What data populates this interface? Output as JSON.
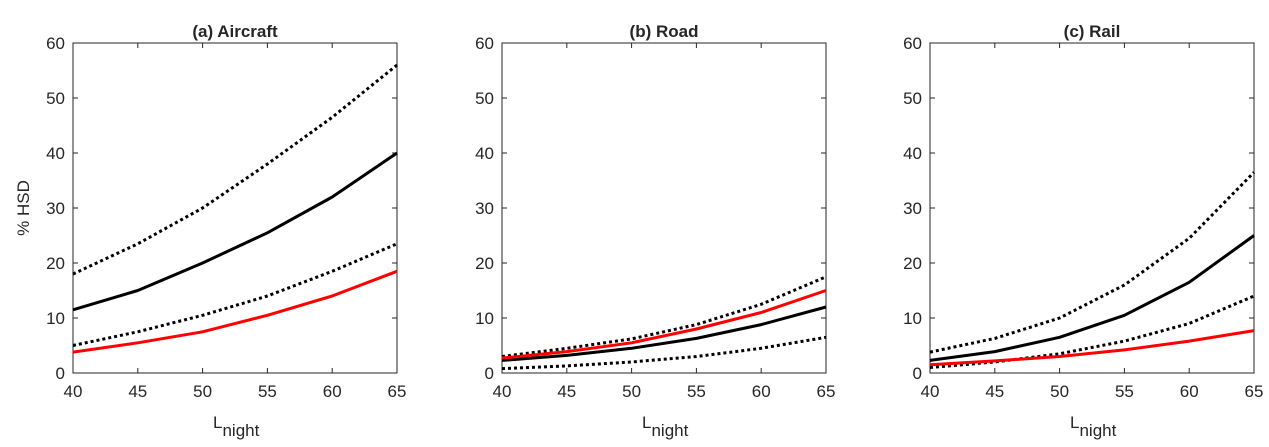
{
  "chart_data": [
    {
      "type": "line",
      "title": "(a) Aircraft",
      "ylabel": "% HSD",
      "xlabel": {
        "base": "L",
        "subscript": "night"
      },
      "x": [
        40,
        45,
        50,
        55,
        60,
        65
      ],
      "xlim": [
        40,
        65
      ],
      "ylim": [
        0,
        60
      ],
      "xticks": [
        40,
        45,
        50,
        55,
        60,
        65
      ],
      "yticks": [
        0,
        10,
        20,
        30,
        40,
        50,
        60
      ],
      "series": [
        {
          "color": "#000000",
          "dash": "solid",
          "values": [
            11.5,
            15,
            20,
            25.5,
            32,
            40
          ]
        },
        {
          "color": "#000000",
          "dash": "dotted",
          "values": [
            18,
            23.5,
            30,
            38,
            46.5,
            56
          ]
        },
        {
          "color": "#000000",
          "dash": "dotted",
          "values": [
            5,
            7.5,
            10.5,
            14,
            18.5,
            23.5
          ]
        },
        {
          "color": "#ff0000",
          "dash": "solid",
          "values": [
            3.8,
            5.5,
            7.5,
            10.5,
            14,
            18.5
          ]
        }
      ]
    },
    {
      "type": "line",
      "title": "(b) Road",
      "xlabel": {
        "base": "L",
        "subscript": "night"
      },
      "x": [
        40,
        45,
        50,
        55,
        60,
        65
      ],
      "xlim": [
        40,
        65
      ],
      "ylim": [
        0,
        60
      ],
      "xticks": [
        40,
        45,
        50,
        55,
        60,
        65
      ],
      "yticks": [
        0,
        10,
        20,
        30,
        40,
        50,
        60
      ],
      "series": [
        {
          "color": "#000000",
          "dash": "solid",
          "values": [
            2.3,
            3.2,
            4.5,
            6.3,
            8.8,
            12
          ]
        },
        {
          "color": "#000000",
          "dash": "dotted",
          "values": [
            3,
            4.5,
            6.2,
            8.8,
            12.5,
            17.5
          ]
        },
        {
          "color": "#000000",
          "dash": "dotted",
          "values": [
            0.8,
            1.3,
            2,
            3,
            4.5,
            6.5
          ]
        },
        {
          "color": "#ff0000",
          "dash": "solid",
          "values": [
            2.7,
            3.9,
            5.5,
            8,
            11,
            15
          ]
        }
      ]
    },
    {
      "type": "line",
      "title": "(c) Rail",
      "xlabel": {
        "base": "L",
        "subscript": "night"
      },
      "x": [
        40,
        45,
        50,
        55,
        60,
        65
      ],
      "xlim": [
        40,
        65
      ],
      "ylim": [
        0,
        60
      ],
      "xticks": [
        40,
        45,
        50,
        55,
        60,
        65
      ],
      "yticks": [
        0,
        10,
        20,
        30,
        40,
        50,
        60
      ],
      "series": [
        {
          "color": "#000000",
          "dash": "solid",
          "values": [
            2.3,
            3.9,
            6.5,
            10.5,
            16.5,
            25
          ]
        },
        {
          "color": "#000000",
          "dash": "dotted",
          "values": [
            3.8,
            6.3,
            10,
            16,
            24.5,
            36.5
          ]
        },
        {
          "color": "#000000",
          "dash": "dotted",
          "values": [
            1,
            2,
            3.5,
            5.8,
            9,
            14
          ]
        },
        {
          "color": "#ff0000",
          "dash": "solid",
          "values": [
            1.5,
            2.2,
            3,
            4.2,
            5.8,
            7.7
          ]
        }
      ]
    }
  ]
}
